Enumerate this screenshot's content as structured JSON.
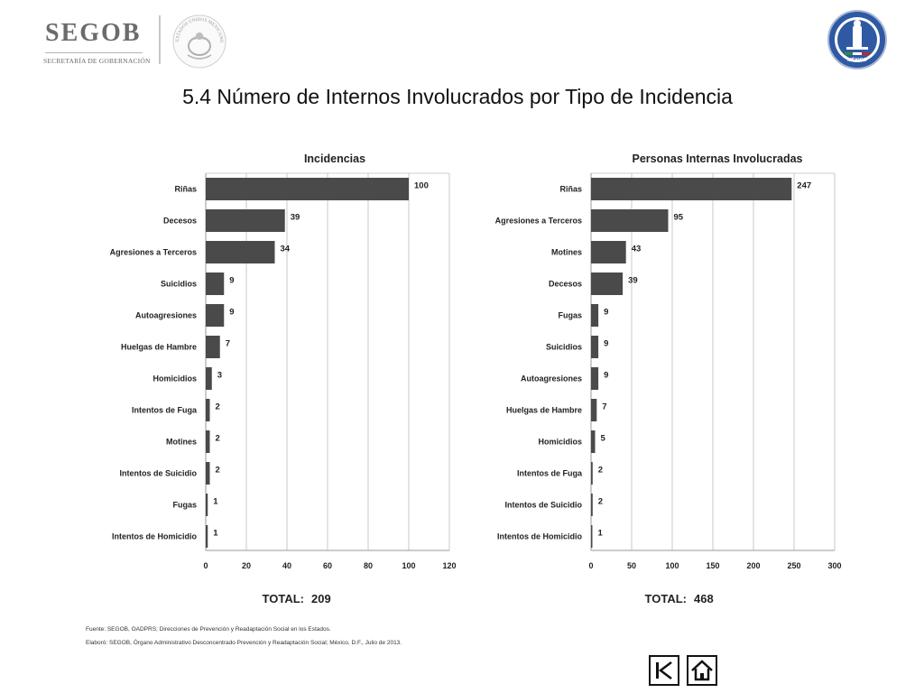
{
  "header": {
    "logo_text": "SEGOB",
    "logo_subtitle": "SECRETARÍA DE GOBERNACIÓN",
    "seal_text": "ESTADOS UNIDOS MEXICANOS",
    "right_logo_text": "MÉXICO",
    "page_title": "5.4 Número de Internos Involucrados por Tipo de Incidencia"
  },
  "chart_data": [
    {
      "type": "bar",
      "orientation": "horizontal",
      "title": "Incidencias",
      "categories": [
        "Riñas",
        "Decesos",
        "Agresiones a Terceros",
        "Suicidios",
        "Autoagresiones",
        "Huelgas de Hambre",
        "Homicidios",
        "Intentos de Fuga",
        "Motines",
        "Intentos de Suicidio",
        "Fugas",
        "Intentos de Homicidio"
      ],
      "values": [
        100,
        39,
        34,
        9,
        9,
        7,
        3,
        2,
        2,
        2,
        1,
        1
      ],
      "xlim": [
        0,
        120
      ],
      "ticks": [
        0,
        20,
        40,
        60,
        80,
        100,
        120
      ],
      "grid": true,
      "total_label": "TOTAL:",
      "total_value": "209",
      "bar_color": "#4a4a4a"
    },
    {
      "type": "bar",
      "orientation": "horizontal",
      "title": "Personas Internas Involucradas",
      "categories": [
        "Riñas",
        "Agresiones a Terceros",
        "Motines",
        "Decesos",
        "Fugas",
        "Suicidios",
        "Autoagresiones",
        "Huelgas de Hambre",
        "Homicidios",
        "Intentos de Fuga",
        "Intentos de Suicidio",
        "Intentos de Homicidio"
      ],
      "values": [
        247,
        95,
        43,
        39,
        9,
        9,
        9,
        7,
        5,
        2,
        2,
        1
      ],
      "xlim": [
        0,
        300
      ],
      "ticks": [
        0,
        50,
        100,
        150,
        200,
        250,
        300
      ],
      "grid": true,
      "total_label": "TOTAL:",
      "total_value": "468",
      "bar_color": "#4a4a4a"
    }
  ],
  "footer": {
    "source": "Fuente: SEGOB, OADPRS; Direcciones de Prevención y Readaptación Social en los Estados.",
    "elaboro": "Elaboró: SEGOB, Órgano Administrativo Desconcentrado Prevención y Readaptación Social; México, D.F., Julio de 2013."
  },
  "nav": {
    "back_icon": "skip-back-icon",
    "home_icon": "home-icon"
  }
}
